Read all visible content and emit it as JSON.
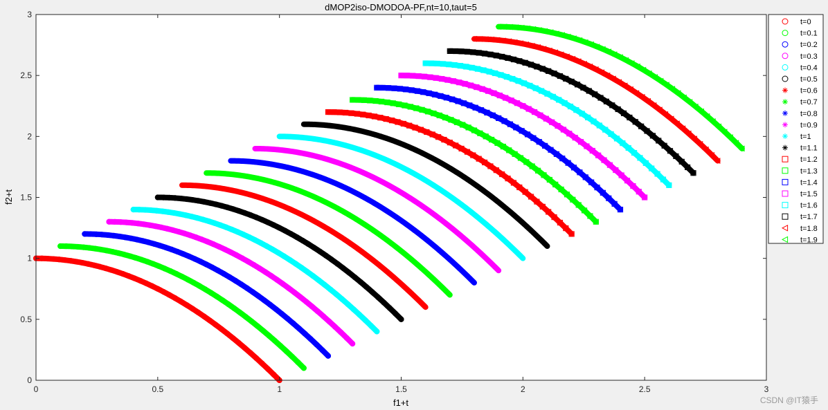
{
  "chart_data": {
    "type": "scatter",
    "title": "dMOP2iso-DMODOA-PF,nt=10,taut=5",
    "xlabel": "f1+t",
    "ylabel": "f2+t",
    "xlim": [
      0,
      3
    ],
    "ylim": [
      0,
      3
    ],
    "xticks": [
      "0",
      "0.5",
      "1",
      "1.5",
      "2",
      "2.5",
      "3"
    ],
    "yticks": [
      "0",
      "0.5",
      "1",
      "1.5",
      "2",
      "2.5",
      "3"
    ],
    "grid": false,
    "legend_position": "outside-right",
    "series_shape": "Pareto front: f2 = t + 1 - x^2 for f1 = t + x, x from 0 to 1",
    "series": [
      {
        "name": "t=0",
        "t": 0,
        "marker": "circle",
        "color": "#ff0000"
      },
      {
        "name": "t=0.1",
        "t": 0.1,
        "marker": "circle",
        "color": "#00ff00"
      },
      {
        "name": "t=0.2",
        "t": 0.2,
        "marker": "circle",
        "color": "#0000ff"
      },
      {
        "name": "t=0.3",
        "t": 0.3,
        "marker": "circle",
        "color": "#ff00ff"
      },
      {
        "name": "t=0.4",
        "t": 0.4,
        "marker": "circle",
        "color": "#00ffff"
      },
      {
        "name": "t=0.5",
        "t": 0.5,
        "marker": "circle",
        "color": "#000000"
      },
      {
        "name": "t=0.6",
        "t": 0.6,
        "marker": "asterisk",
        "color": "#ff0000"
      },
      {
        "name": "t=0.7",
        "t": 0.7,
        "marker": "asterisk",
        "color": "#00ff00"
      },
      {
        "name": "t=0.8",
        "t": 0.8,
        "marker": "asterisk",
        "color": "#0000ff"
      },
      {
        "name": "t=0.9",
        "t": 0.9,
        "marker": "asterisk",
        "color": "#ff00ff"
      },
      {
        "name": "t=1",
        "t": 1.0,
        "marker": "asterisk",
        "color": "#00ffff"
      },
      {
        "name": "t=1.1",
        "t": 1.1,
        "marker": "asterisk",
        "color": "#000000"
      },
      {
        "name": "t=1.2",
        "t": 1.2,
        "marker": "square",
        "color": "#ff0000"
      },
      {
        "name": "t=1.3",
        "t": 1.3,
        "marker": "square",
        "color": "#00ff00"
      },
      {
        "name": "t=1.4",
        "t": 1.4,
        "marker": "square",
        "color": "#0000ff"
      },
      {
        "name": "t=1.5",
        "t": 1.5,
        "marker": "square",
        "color": "#ff00ff"
      },
      {
        "name": "t=1.6",
        "t": 1.6,
        "marker": "square",
        "color": "#00ffff"
      },
      {
        "name": "t=1.7",
        "t": 1.7,
        "marker": "square",
        "color": "#000000"
      },
      {
        "name": "t=1.8",
        "t": 1.8,
        "marker": "triangle",
        "color": "#ff0000"
      },
      {
        "name": "t=1.9",
        "t": 1.9,
        "marker": "triangle",
        "color": "#00ff00"
      }
    ]
  },
  "watermark": "CSDN @IT猿手"
}
